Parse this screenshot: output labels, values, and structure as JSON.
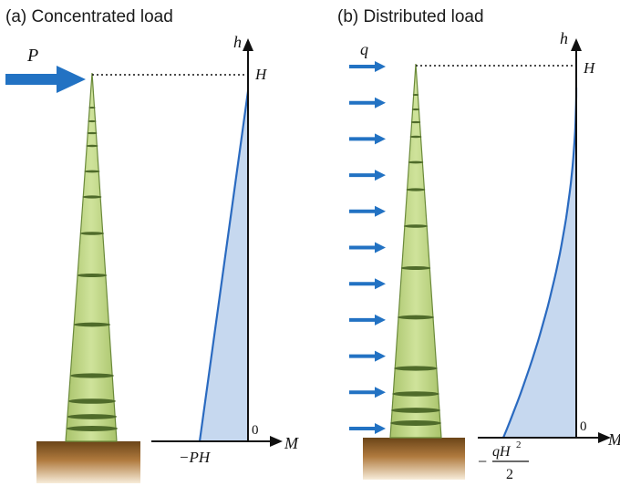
{
  "panels": [
    {
      "id": "a",
      "title": "(a) Concentrated load",
      "load_label": "P",
      "axis_vertical": "h",
      "axis_horizontal": "M",
      "top_label": "H",
      "origin_label": "0",
      "moment_label": "−PH",
      "moment_profile": "linear"
    },
    {
      "id": "b",
      "title": "(b) Distributed load",
      "load_label": "q",
      "axis_vertical": "h",
      "axis_horizontal": "M",
      "top_label": "H",
      "origin_label": "0",
      "moment_label_prefix": "−",
      "moment_label_num_base": "qH",
      "moment_label_num_exp": "2",
      "moment_label_den": "2",
      "moment_profile": "quadratic",
      "distributed_arrow_count": 11
    }
  ],
  "colors": {
    "arrow": "#2272c3",
    "diagram_line": "#2a6ac0",
    "diagram_fill": "#c6d8ef",
    "tree_fill": "#c3d98b",
    "tree_ring": "#4f6b2a",
    "ground_top": "#6b4518",
    "ground_bottom": "#f7ecd9",
    "axis": "#111111"
  }
}
